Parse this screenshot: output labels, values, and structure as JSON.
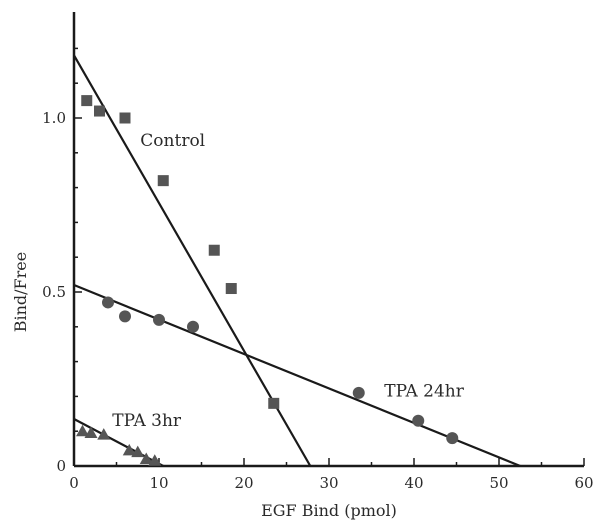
{
  "chart_data": {
    "type": "scatter",
    "title": "",
    "xlabel": "EGF Bind (pmol)",
    "ylabel": "Bind/Free",
    "xlim": [
      0,
      60
    ],
    "ylim": [
      0,
      1.25
    ],
    "x_ticks": [
      0,
      10,
      20,
      30,
      40,
      50,
      60
    ],
    "x_tick_labels": [
      "0",
      "10",
      "20",
      "30",
      "40",
      "50",
      "60"
    ],
    "y_ticks": [
      0,
      0.5,
      1.0
    ],
    "y_tick_labels": [
      "0",
      "0.5",
      "1.0"
    ],
    "x_minor_ticks": [
      5,
      15,
      25,
      35,
      45,
      55
    ],
    "y_minor_ticks": [
      0.1,
      0.2,
      0.3,
      0.4,
      0.6,
      0.7,
      0.8,
      0.9,
      1.1,
      1.2
    ],
    "grid": false,
    "legend": "none",
    "series": [
      {
        "name": "Control",
        "marker": "square",
        "color": "#555555",
        "points": [
          {
            "x": 1.5,
            "y": 1.05
          },
          {
            "x": 3.0,
            "y": 1.02
          },
          {
            "x": 6.0,
            "y": 1.0
          },
          {
            "x": 10.5,
            "y": 0.82
          },
          {
            "x": 16.5,
            "y": 0.62
          },
          {
            "x": 18.5,
            "y": 0.51
          },
          {
            "x": 23.5,
            "y": 0.18
          }
        ],
        "fit": {
          "x0": 0,
          "y0": 1.18,
          "x1": 27.8,
          "y1": 0
        },
        "label_at": {
          "x": 7.8,
          "y": 0.92
        }
      },
      {
        "name": "TPA 24hr",
        "marker": "circle",
        "color": "#555555",
        "points": [
          {
            "x": 4.0,
            "y": 0.47
          },
          {
            "x": 6.0,
            "y": 0.43
          },
          {
            "x": 10.0,
            "y": 0.42
          },
          {
            "x": 14.0,
            "y": 0.4
          },
          {
            "x": 33.5,
            "y": 0.21
          },
          {
            "x": 40.5,
            "y": 0.13
          },
          {
            "x": 44.5,
            "y": 0.08
          }
        ],
        "fit": {
          "x0": 0,
          "y0": 0.52,
          "x1": 52.5,
          "y1": 0
        },
        "label_at": {
          "x": 36.5,
          "y": 0.2
        }
      },
      {
        "name": "TPA 3hr",
        "marker": "triangle",
        "color": "#555555",
        "points": [
          {
            "x": 1.0,
            "y": 0.1
          },
          {
            "x": 2.0,
            "y": 0.095
          },
          {
            "x": 3.5,
            "y": 0.09
          },
          {
            "x": 6.5,
            "y": 0.045
          },
          {
            "x": 7.5,
            "y": 0.04
          },
          {
            "x": 8.5,
            "y": 0.02
          },
          {
            "x": 9.5,
            "y": 0.015
          }
        ],
        "fit": {
          "x0": 0,
          "y0": 0.135,
          "x1": 10.5,
          "y1": 0
        },
        "label_at": {
          "x": 4.5,
          "y": 0.115
        }
      }
    ]
  }
}
